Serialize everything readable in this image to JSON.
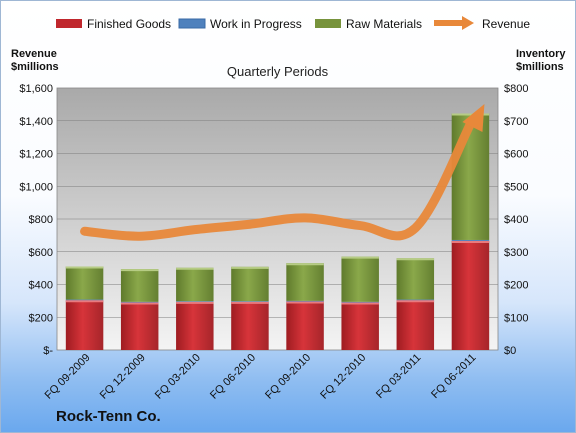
{
  "chart_data": {
    "type": "bar",
    "stacked": true,
    "secondary_line": true,
    "title": "Quarterly Periods",
    "company": "Rock-Tenn Co.",
    "left_axis_title": [
      "Revenue",
      "$millions"
    ],
    "right_axis_title": [
      "Inventory",
      "$millions"
    ],
    "categories": [
      "FQ 09-2009",
      "FQ 12-2009",
      "FQ 03-2010",
      "FQ 06-2010",
      "FQ 09-2010",
      "FQ 12-2010",
      "FQ 03-2011",
      "FQ 06-2011"
    ],
    "left_ticks": [
      "$-",
      "$200",
      "$400",
      "$600",
      "$800",
      "$1,000",
      "$1,200",
      "$1,400",
      "$1,600"
    ],
    "right_ticks": [
      "$0",
      "$100",
      "$200",
      "$300",
      "$400",
      "$500",
      "$600",
      "$700",
      "$800"
    ],
    "left_ylim": [
      0,
      1600
    ],
    "right_ylim": [
      0,
      800
    ],
    "series": [
      {
        "name": "Finished Goods",
        "axis": "right",
        "color": "#c0272d",
        "values": [
          152,
          145,
          147,
          147,
          148,
          145,
          152,
          333
        ]
      },
      {
        "name": "Work in Progress",
        "axis": "right",
        "color": "#4f81bd",
        "values": [
          2,
          2,
          2,
          2,
          2,
          2,
          2,
          3
        ]
      },
      {
        "name": "Raw Materials",
        "axis": "right",
        "color": "#77933c",
        "values": [
          101,
          100,
          102,
          105,
          115,
          138,
          126,
          386
        ]
      },
      {
        "name": "Revenue",
        "axis": "left",
        "type": "line",
        "color": "#e8883a",
        "values": [
          725,
          695,
          735,
          768,
          807,
          760,
          745,
          1380
        ]
      }
    ],
    "legend_position": "top",
    "grid": true
  }
}
